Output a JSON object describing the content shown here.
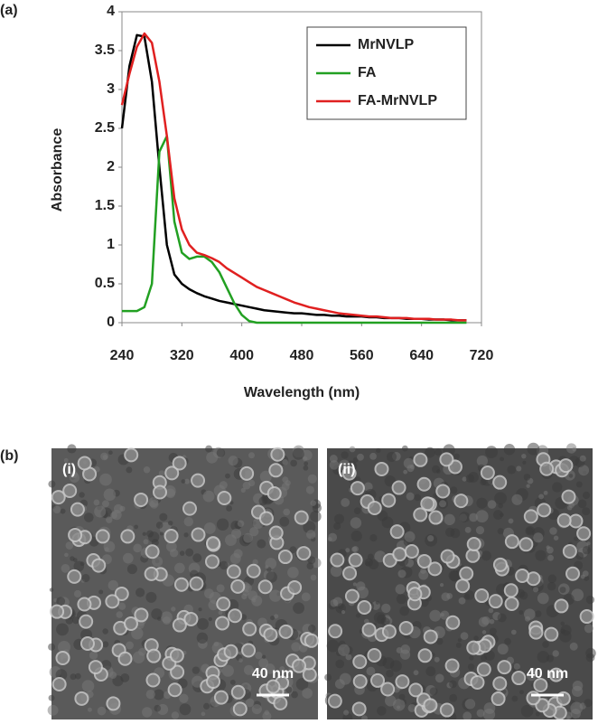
{
  "panel_a_label": "(a)",
  "chart_data": {
    "type": "line",
    "x_label": "Wavelength (nm)",
    "y_label": "Absorbance",
    "x": [
      240,
      250,
      260,
      270,
      280,
      290,
      300,
      310,
      320,
      330,
      340,
      350,
      360,
      370,
      380,
      390,
      400,
      410,
      420,
      430,
      440,
      450,
      460,
      470,
      480,
      490,
      500,
      510,
      520,
      530,
      540,
      550,
      560,
      570,
      580,
      590,
      600,
      610,
      620,
      630,
      640,
      650,
      660,
      670,
      680,
      690,
      700
    ],
    "series": [
      {
        "name": "MrNVLP",
        "color": "#000000",
        "values": [
          2.5,
          3.3,
          3.7,
          3.68,
          3.1,
          2.0,
          1.0,
          0.62,
          0.5,
          0.43,
          0.38,
          0.34,
          0.31,
          0.28,
          0.26,
          0.24,
          0.22,
          0.2,
          0.18,
          0.16,
          0.15,
          0.14,
          0.13,
          0.12,
          0.12,
          0.11,
          0.1,
          0.1,
          0.09,
          0.09,
          0.08,
          0.08,
          0.08,
          0.07,
          0.07,
          0.06,
          0.06,
          0.06,
          0.05,
          0.05,
          0.05,
          0.04,
          0.04,
          0.04,
          0.03,
          0.03,
          0.03
        ]
      },
      {
        "name": "FA",
        "color": "#22a022",
        "values": [
          0.15,
          0.15,
          0.15,
          0.2,
          0.5,
          2.2,
          2.4,
          1.3,
          0.9,
          0.82,
          0.85,
          0.85,
          0.78,
          0.65,
          0.45,
          0.25,
          0.1,
          0.02,
          0,
          0,
          0,
          0,
          0,
          0,
          0,
          0,
          0,
          0,
          0,
          0,
          0,
          0,
          0,
          0,
          0,
          0,
          0,
          0,
          0,
          0,
          0,
          0,
          0,
          0,
          0,
          0,
          0
        ]
      },
      {
        "name": "FA-MrNVLP",
        "color": "#e02020",
        "values": [
          2.8,
          3.2,
          3.55,
          3.72,
          3.6,
          3.1,
          2.4,
          1.6,
          1.2,
          1.0,
          0.9,
          0.87,
          0.83,
          0.78,
          0.7,
          0.64,
          0.58,
          0.52,
          0.46,
          0.42,
          0.38,
          0.34,
          0.3,
          0.26,
          0.23,
          0.2,
          0.18,
          0.16,
          0.14,
          0.12,
          0.11,
          0.1,
          0.09,
          0.08,
          0.08,
          0.07,
          0.06,
          0.06,
          0.06,
          0.05,
          0.05,
          0.05,
          0.04,
          0.04,
          0.04,
          0.03,
          0.03
        ]
      }
    ],
    "xlim": [
      240,
      720
    ],
    "xticks": [
      240,
      320,
      400,
      480,
      560,
      640,
      720
    ],
    "ylim": [
      0,
      4
    ],
    "yticks": [
      0,
      0.5,
      1,
      1.5,
      2,
      2.5,
      3,
      3.5,
      4
    ],
    "grid": false,
    "legend": "top-right"
  },
  "panel_b": {
    "label": "(b)",
    "images": [
      {
        "label": "(i)",
        "scale_bar": "40 nm"
      },
      {
        "label": "(ii)",
        "scale_bar": "40 nm"
      }
    ]
  }
}
